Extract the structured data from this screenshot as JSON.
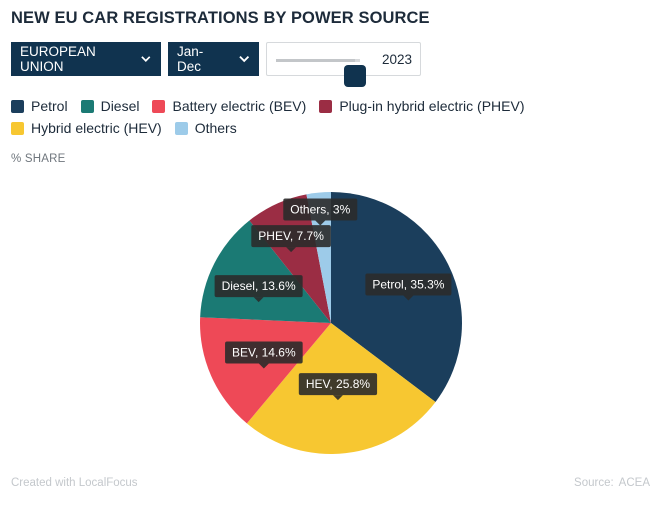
{
  "title": "NEW EU CAR REGISTRATIONS BY POWER SOURCE",
  "controls": {
    "region": "EUROPEAN UNION",
    "period": "Jan-Dec",
    "year": "2023",
    "year_position": 0.94
  },
  "unit_label": "% SHARE",
  "chart_data": {
    "type": "pie",
    "title": "NEW EU CAR REGISTRATIONS BY POWER SOURCE",
    "unit": "% SHARE",
    "year": 2023,
    "period": "Jan-Dec",
    "region": "EUROPEAN UNION",
    "slices": [
      {
        "key": "petrol",
        "legend": "Petrol",
        "short": "Petrol",
        "value": 35.3,
        "color": "#1b3e5c"
      },
      {
        "key": "hev",
        "legend": "Hybrid electric (HEV)",
        "short": "HEV",
        "value": 25.8,
        "color": "#f7c731"
      },
      {
        "key": "bev",
        "legend": "Battery electric (BEV)",
        "short": "BEV",
        "value": 14.6,
        "color": "#ee4957"
      },
      {
        "key": "diesel",
        "legend": "Diesel",
        "short": "Diesel",
        "value": 13.6,
        "color": "#1b7a74"
      },
      {
        "key": "phev",
        "legend": "Plug-in hybrid electric (PHEV)",
        "short": "PHEV",
        "value": 7.7,
        "color": "#9b2d44"
      },
      {
        "key": "others",
        "legend": "Others",
        "short": "Others",
        "value": 3,
        "color": "#9dcbe9"
      }
    ],
    "legend_order": [
      "petrol",
      "diesel",
      "bev",
      "phev",
      "hev",
      "others"
    ],
    "label_format": "{short}, {value}%"
  },
  "footer": {
    "credit": "Created with LocalFocus",
    "source_label": "Source:",
    "source": "ACEA"
  }
}
